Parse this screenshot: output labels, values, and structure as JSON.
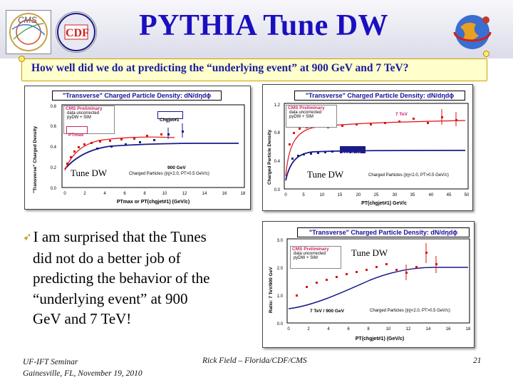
{
  "slide": {
    "title": "PYTHIA Tune DW",
    "question": "How well did we do at predicting the “underlying event” at 900 GeV and 7 TeV?",
    "bullet_lines": [
      "I am surprised that the Tunes",
      "did not do a better job of",
      "predicting the behavior of the",
      "“underlying event” at 900",
      "GeV and 7 TeV!"
    ]
  },
  "logos": {
    "left1": "CMS",
    "left2": "CDF"
  },
  "plots": {
    "p1": {
      "title": "\"Transverse\" Charged Particle Density: dN/dηdϕ",
      "ylabel": "\"Transverse\" Charged Density",
      "xlabel": "PTmax or PT(chgjet#1) (GeV/c)",
      "cms_line1": "CMS Preliminary",
      "cms_line2": "data uncorrected",
      "cms_line3": "pyDW + SIM",
      "legend_ptmax": "PTmax",
      "legend_chgjet": "Chgjet#1",
      "energy": "900 GeV",
      "cuts": "Charged Particles (|η|<2.0, PT>0.5 GeV/c)",
      "tune": "Tune DW",
      "xticks": [
        "0",
        "2",
        "4",
        "6",
        "8",
        "10",
        "12",
        "14",
        "16",
        "18"
      ],
      "yticks": [
        "0.0",
        "0.2",
        "0.4",
        "0.6",
        "0.8"
      ]
    },
    "p2": {
      "title": "\"Transverse\" Charged Particle Density: dN/dηdϕ",
      "ylabel": "Charged Particle Density",
      "xlabel": "PT(chgjet#1) GeV/c",
      "cms_line1": "CMS Preliminary",
      "cms_line2": "data uncorrected",
      "cms_line3": "pyDW + SIM",
      "energy_hi": "7 TeV",
      "energy_lo": "900 GeV",
      "cuts": "Charged Particles (|η|<2.0, PT>0.5 GeV/c)",
      "tune": "Tune DW",
      "xticks": [
        "0",
        "5",
        "10",
        "15",
        "20",
        "25",
        "30",
        "35",
        "40",
        "45",
        "50"
      ],
      "yticks": [
        "0.0",
        "0.4",
        "0.8",
        "1.2"
      ]
    },
    "p3": {
      "title": "\"Transverse\" Charged Particle Density: dN/dηdϕ",
      "ylabel": "Ratio: 7 TeV/900 GeV",
      "xlabel": "PT(chgjet#1) (GeV/c)",
      "cms_line1": "CMS Preliminary",
      "cms_line2": "data uncorrected",
      "cms_line3": "pyDW + SIM",
      "ratio_label": "7 TeV / 900 GeV",
      "cuts": "Charged Particles (|η|<2.0, PT>0.5 GeV/c)",
      "tune": "Tune DW",
      "xticks": [
        "0",
        "2",
        "4",
        "6",
        "8",
        "10",
        "12",
        "14",
        "16",
        "18"
      ],
      "yticks": [
        "0.0",
        "1.0",
        "2.0",
        "3.0"
      ]
    }
  },
  "footer": {
    "left_line1": "UF-IFT Seminar",
    "left_line2": "Gainesville, FL, November 19, 2010",
    "center": "Rick Field – Florida/CDF/CMS",
    "page": "21"
  },
  "colors": {
    "title": "#1a0fbf",
    "question": "#1a1aa0",
    "data_red": "#dd1111",
    "data_blue": "#1a1a88"
  }
}
